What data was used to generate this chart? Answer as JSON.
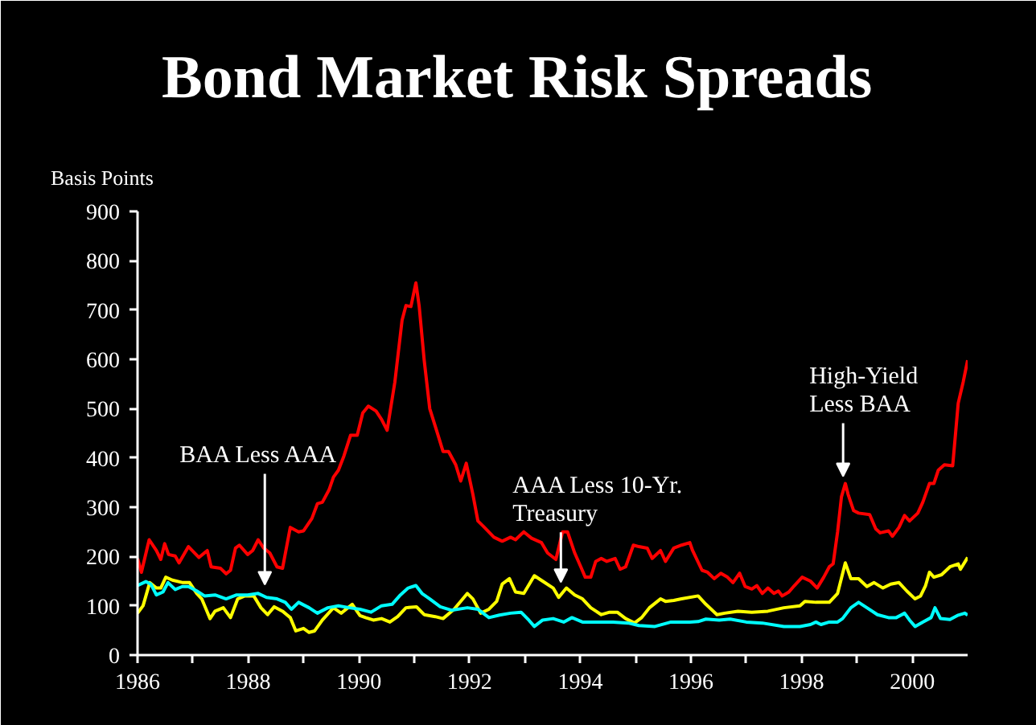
{
  "chart_data": {
    "type": "line",
    "title": "Bond Market Risk Spreads",
    "ylabel": "Basis Points",
    "xlim": [
      1986,
      2001
    ],
    "ylim": [
      0,
      900
    ],
    "xticks": [
      1986,
      {
        "value": 1987,
        "label": null
      },
      1988,
      {
        "value": 1989,
        "label": null
      },
      1990,
      {
        "value": 1991,
        "label": null
      },
      1992,
      {
        "value": 1993,
        "label": null
      },
      1994,
      {
        "value": 1995,
        "label": null
      },
      1996,
      {
        "value": 1997,
        "label": null
      },
      1998,
      {
        "value": 1999,
        "label": null
      },
      2000
    ],
    "yticks": [
      0,
      100,
      200,
      300,
      400,
      500,
      600,
      700,
      800,
      900
    ],
    "series": [
      {
        "color": "#ff0000",
        "x": [
          1986.0,
          1986.07,
          1986.21,
          1986.34,
          1986.42,
          1986.49,
          1986.56,
          1986.68,
          1986.75,
          1986.92,
          1987.11,
          1987.26,
          1987.33,
          1987.5,
          1987.6,
          1987.68,
          1987.77,
          1987.84,
          1987.99,
          1988.08,
          1988.18,
          1988.28,
          1988.39,
          1988.52,
          1988.62,
          1988.76,
          1988.91,
          1989.0,
          1989.15,
          1989.25,
          1989.34,
          1989.46,
          1989.54,
          1989.63,
          1989.73,
          1989.85,
          1989.97,
          1990.07,
          1990.17,
          1990.31,
          1990.41,
          1990.51,
          1990.65,
          1990.78,
          1990.85,
          1990.94,
          1991.03,
          1991.09,
          1991.18,
          1991.28,
          1991.43,
          1991.52,
          1991.62,
          1991.75,
          1991.84,
          1991.94,
          1992.06,
          1992.15,
          1992.25,
          1992.44,
          1992.59,
          1992.74,
          1992.83,
          1992.98,
          1993.12,
          1993.3,
          1993.41,
          1993.56,
          1993.68,
          1993.77,
          1993.9,
          1994.01,
          1994.09,
          1994.19,
          1994.28,
          1994.38,
          1994.48,
          1994.63,
          1994.72,
          1994.82,
          1994.96,
          1995.06,
          1995.21,
          1995.3,
          1995.45,
          1995.54,
          1995.69,
          1995.83,
          1995.98,
          1996.03,
          1996.2,
          1996.3,
          1996.42,
          1996.54,
          1996.66,
          1996.76,
          1996.88,
          1996.98,
          1997.1,
          1997.19,
          1997.29,
          1997.39,
          1997.5,
          1997.58,
          1997.65,
          1997.77,
          1997.87,
          1998.01,
          1998.16,
          1998.28,
          1998.4,
          1998.5,
          1998.57,
          1998.65,
          1998.72,
          1998.79,
          1998.84,
          1998.94,
          1999.03,
          1999.23,
          1999.34,
          1999.42,
          1999.57,
          1999.64,
          1999.76,
          1999.86,
          1999.95,
          2000.1,
          2000.19,
          2000.31,
          2000.39,
          2000.47,
          2000.58,
          2000.73,
          2000.83,
          2000.92,
          2001.0
        ],
        "values": [
          196,
          168,
          234,
          212,
          194,
          226,
          204,
          201,
          187,
          220,
          198,
          212,
          179,
          176,
          165,
          172,
          217,
          223,
          204,
          212,
          234,
          217,
          207,
          179,
          176,
          259,
          250,
          252,
          277,
          307,
          310,
          335,
          361,
          375,
          404,
          446,
          446,
          491,
          505,
          495,
          478,
          456,
          554,
          679,
          709,
          707,
          755,
          707,
          598,
          500,
          446,
          413,
          413,
          386,
          353,
          389,
          326,
          272,
          261,
          239,
          231,
          239,
          234,
          250,
          237,
          228,
          207,
          194,
          250,
          250,
          207,
          179,
          158,
          158,
          190,
          196,
          190,
          196,
          174,
          179,
          223,
          220,
          217,
          196,
          212,
          190,
          217,
          223,
          228,
          212,
          172,
          168,
          155,
          166,
          158,
          147,
          166,
          139,
          134,
          141,
          125,
          136,
          125,
          130,
          120,
          128,
          141,
          158,
          150,
          136,
          158,
          179,
          185,
          250,
          321,
          348,
          326,
          293,
          288,
          285,
          256,
          248,
          252,
          241,
          259,
          283,
          272,
          288,
          310,
          348,
          348,
          375,
          386,
          384,
          511,
          554,
          598
        ]
      },
      {
        "color": "#ffff00",
        "x": [
          1986.0,
          1986.1,
          1986.22,
          1986.34,
          1986.42,
          1986.51,
          1986.63,
          1986.82,
          1986.94,
          1987.07,
          1987.16,
          1987.31,
          1987.4,
          1987.55,
          1987.68,
          1987.81,
          1987.94,
          1988.1,
          1988.23,
          1988.35,
          1988.47,
          1988.62,
          1988.76,
          1988.86,
          1989.0,
          1989.1,
          1989.2,
          1989.34,
          1989.54,
          1989.68,
          1989.88,
          1990.02,
          1990.12,
          1990.26,
          1990.41,
          1990.56,
          1990.7,
          1990.85,
          1991.04,
          1991.18,
          1991.38,
          1991.52,
          1991.72,
          1991.96,
          1992.06,
          1992.2,
          1992.35,
          1992.49,
          1992.59,
          1992.72,
          1992.83,
          1992.98,
          1993.17,
          1993.32,
          1993.51,
          1993.61,
          1993.75,
          1993.9,
          1994.04,
          1994.19,
          1994.38,
          1994.53,
          1994.67,
          1994.82,
          1994.98,
          1995.11,
          1995.25,
          1995.45,
          1995.54,
          1995.69,
          1995.83,
          1996.13,
          1996.27,
          1996.47,
          1996.61,
          1996.85,
          1997.1,
          1997.39,
          1997.68,
          1997.97,
          1998.06,
          1998.26,
          1998.5,
          1998.65,
          1998.79,
          1998.89,
          1999.03,
          1999.18,
          1999.31,
          1999.47,
          1999.61,
          1999.76,
          1999.9,
          2000.05,
          2000.15,
          2000.24,
          2000.31,
          2000.39,
          2000.53,
          2000.68,
          2000.83,
          2000.87,
          2001.0
        ],
        "values": [
          85,
          100,
          147,
          136,
          136,
          158,
          152,
          147,
          147,
          125,
          114,
          74,
          89,
          96,
          76,
          114,
          120,
          120,
          96,
          82,
          98,
          89,
          76,
          49,
          54,
          46,
          49,
          71,
          96,
          85,
          103,
          80,
          76,
          71,
          74,
          67,
          78,
          96,
          98,
          82,
          78,
          74,
          93,
          125,
          114,
          85,
          93,
          109,
          144,
          155,
          128,
          125,
          161,
          150,
          136,
          117,
          136,
          122,
          114,
          96,
          82,
          87,
          87,
          74,
          65,
          76,
          96,
          114,
          109,
          111,
          114,
          120,
          103,
          82,
          85,
          89,
          87,
          89,
          96,
          100,
          109,
          107,
          107,
          125,
          187,
          155,
          155,
          139,
          147,
          136,
          144,
          147,
          130,
          114,
          120,
          141,
          168,
          158,
          163,
          179,
          185,
          174,
          198
        ]
      },
      {
        "color": "#00ffff",
        "x": [
          1986.0,
          1986.15,
          1986.24,
          1986.34,
          1986.46,
          1986.55,
          1986.68,
          1986.81,
          1986.92,
          1987.07,
          1987.21,
          1987.4,
          1987.6,
          1987.79,
          1987.99,
          1988.18,
          1988.33,
          1988.52,
          1988.67,
          1988.78,
          1988.91,
          1989.1,
          1989.25,
          1989.44,
          1989.63,
          1989.83,
          1990.02,
          1990.22,
          1990.41,
          1990.6,
          1990.75,
          1990.89,
          1991.03,
          1991.14,
          1991.28,
          1991.47,
          1991.67,
          1991.96,
          1992.15,
          1992.35,
          1992.54,
          1992.74,
          1992.93,
          1993.07,
          1993.17,
          1993.32,
          1993.51,
          1993.7,
          1993.85,
          1994.04,
          1994.28,
          1994.58,
          1994.87,
          1995.06,
          1995.35,
          1995.64,
          1995.98,
          1996.13,
          1996.27,
          1996.51,
          1996.71,
          1997.0,
          1997.29,
          1997.68,
          1997.97,
          1998.16,
          1998.26,
          1998.35,
          1998.5,
          1998.65,
          1998.74,
          1998.89,
          1999.03,
          1999.18,
          1999.37,
          1999.57,
          1999.71,
          1999.86,
          1999.95,
          2000.05,
          2000.19,
          2000.34,
          2000.41,
          2000.51,
          2000.68,
          2000.83,
          2000.95,
          2001.0
        ],
        "values": [
          141,
          149,
          144,
          122,
          128,
          147,
          133,
          139,
          139,
          130,
          120,
          122,
          114,
          122,
          122,
          125,
          117,
          114,
          107,
          93,
          107,
          96,
          85,
          96,
          100,
          96,
          93,
          87,
          100,
          103,
          122,
          136,
          141,
          125,
          114,
          98,
          91,
          96,
          93,
          76,
          81,
          85,
          87,
          71,
          58,
          71,
          74,
          67,
          76,
          67,
          67,
          67,
          65,
          60,
          58,
          67,
          67,
          68,
          73,
          71,
          73,
          67,
          65,
          58,
          58,
          62,
          67,
          62,
          67,
          67,
          74,
          96,
          107,
          96,
          82,
          76,
          76,
          85,
          71,
          58,
          67,
          76,
          96,
          74,
          72,
          81,
          85,
          81
        ]
      }
    ],
    "annotations": [
      {
        "text": "BAA Less AAA",
        "x": 1988.3,
        "y": 120
      },
      {
        "text": "AAA Less 10-Yr.\nTreasury",
        "x": 1993.65,
        "y": 125
      },
      {
        "text": "High-Yield\nLess BAA",
        "x": 1998.75,
        "y": 340
      }
    ]
  }
}
